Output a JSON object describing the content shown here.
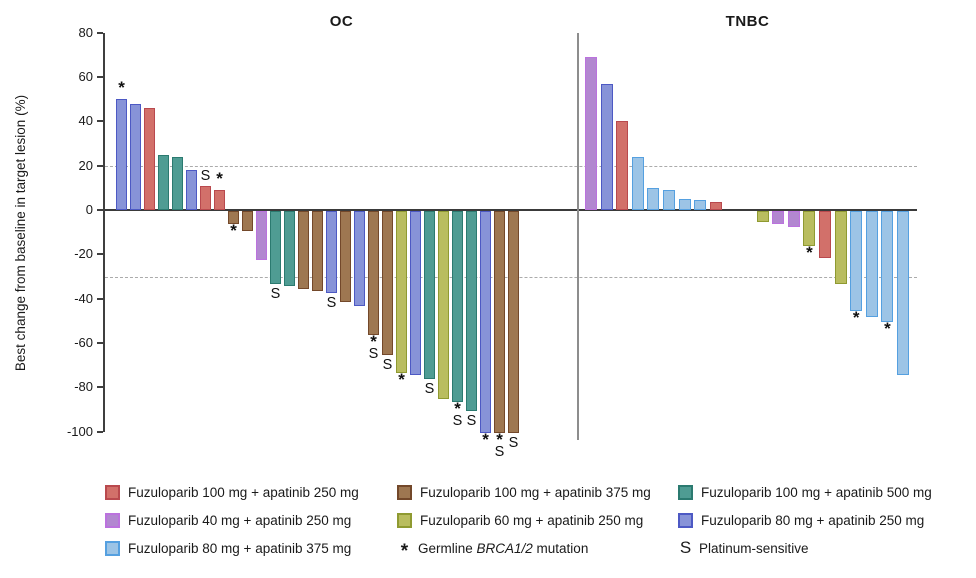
{
  "figure_colors": {
    "fuzuloparib-100-apatinib-250": {
      "fill": "#d2706a",
      "stroke": "#b9494e"
    },
    "fuzuloparib-40-apatinib-250": {
      "fill": "#b287d0",
      "stroke": "#bb72de"
    },
    "fuzuloparib-80-apatinib-375": {
      "fill": "#9cc4e6",
      "stroke": "#55a0e0"
    },
    "fuzuloparib-100-apatinib-375": {
      "fill": "#9e7751",
      "stroke": "#73482a"
    },
    "fuzuloparib-60-apatinib-250": {
      "fill": "#b9bd5f",
      "stroke": "#8f9a31"
    },
    "fuzuloparib-100-apatinib-500": {
      "fill": "#4f9c93",
      "stroke": "#2b7a70"
    },
    "fuzuloparib-80-apatinib-250": {
      "fill": "#8793d8",
      "stroke": "#4d59c4"
    }
  },
  "chart_data": {
    "type": "bar",
    "ylabel": "Best change from baseline in target lesion (%)",
    "ylim": [
      -100,
      80
    ],
    "yticks": [
      80,
      60,
      40,
      20,
      0,
      -20,
      -40,
      -60,
      -80,
      -100
    ],
    "ref_lines": [
      20,
      -30
    ],
    "grid": "dashed-reference-lines-only",
    "marks_meaning": {
      "*": "Germline BRCA1/2 mutation",
      "S": "Platinum-sensitive"
    },
    "panels": [
      {
        "title": "OC",
        "bars": [
          {
            "group": "fuzuloparib-80-apatinib-250",
            "value": 50,
            "mark": "*"
          },
          {
            "group": "fuzuloparib-80-apatinib-250",
            "value": 48,
            "mark": ""
          },
          {
            "group": "fuzuloparib-100-apatinib-250",
            "value": 46,
            "mark": ""
          },
          {
            "group": "fuzuloparib-100-apatinib-500",
            "value": 25,
            "mark": ""
          },
          {
            "group": "fuzuloparib-100-apatinib-500",
            "value": 24,
            "mark": ""
          },
          {
            "group": "fuzuloparib-80-apatinib-250",
            "value": 18,
            "mark": ""
          },
          {
            "group": "fuzuloparib-100-apatinib-250",
            "value": 11,
            "mark": "S"
          },
          {
            "group": "fuzuloparib-100-apatinib-250",
            "value": 9,
            "mark": "*"
          },
          {
            "group": "fuzuloparib-100-apatinib-375",
            "value": -6,
            "mark": "*"
          },
          {
            "group": "fuzuloparib-100-apatinib-375",
            "value": -9,
            "mark": ""
          },
          {
            "group": "fuzuloparib-40-apatinib-250",
            "value": -22,
            "mark": ""
          },
          {
            "group": "fuzuloparib-100-apatinib-500",
            "value": -33,
            "mark": "S"
          },
          {
            "group": "fuzuloparib-100-apatinib-500",
            "value": -34,
            "mark": ""
          },
          {
            "group": "fuzuloparib-100-apatinib-375",
            "value": -35,
            "mark": ""
          },
          {
            "group": "fuzuloparib-100-apatinib-375",
            "value": -36,
            "mark": ""
          },
          {
            "group": "fuzuloparib-80-apatinib-250",
            "value": -37,
            "mark": "S"
          },
          {
            "group": "fuzuloparib-100-apatinib-375",
            "value": -41,
            "mark": ""
          },
          {
            "group": "fuzuloparib-80-apatinib-250",
            "value": -43,
            "mark": ""
          },
          {
            "group": "fuzuloparib-100-apatinib-375",
            "value": -56,
            "mark": "*S"
          },
          {
            "group": "fuzuloparib-100-apatinib-375",
            "value": -65,
            "mark": "S"
          },
          {
            "group": "fuzuloparib-60-apatinib-250",
            "value": -73,
            "mark": "*"
          },
          {
            "group": "fuzuloparib-80-apatinib-250",
            "value": -74,
            "mark": ""
          },
          {
            "group": "fuzuloparib-100-apatinib-500",
            "value": -76,
            "mark": "S"
          },
          {
            "group": "fuzuloparib-60-apatinib-250",
            "value": -85,
            "mark": ""
          },
          {
            "group": "fuzuloparib-100-apatinib-500",
            "value": -86,
            "mark": "*S"
          },
          {
            "group": "fuzuloparib-100-apatinib-500",
            "value": -90,
            "mark": "S"
          },
          {
            "group": "fuzuloparib-80-apatinib-250",
            "value": -100,
            "mark": "*"
          },
          {
            "group": "fuzuloparib-100-apatinib-375",
            "value": -100,
            "mark": "*S"
          },
          {
            "group": "fuzuloparib-100-apatinib-375",
            "value": -100,
            "mark": "S"
          }
        ]
      },
      {
        "title": "TNBC",
        "bars": [
          {
            "group": "fuzuloparib-40-apatinib-250",
            "value": 69,
            "mark": ""
          },
          {
            "group": "fuzuloparib-80-apatinib-250",
            "value": 57,
            "mark": ""
          },
          {
            "group": "fuzuloparib-100-apatinib-250",
            "value": 40,
            "mark": ""
          },
          {
            "group": "fuzuloparib-80-apatinib-375",
            "value": 24,
            "mark": ""
          },
          {
            "group": "fuzuloparib-80-apatinib-375",
            "value": 10,
            "mark": ""
          },
          {
            "group": "fuzuloparib-80-apatinib-375",
            "value": 9,
            "mark": ""
          },
          {
            "group": "fuzuloparib-80-apatinib-375",
            "value": 5,
            "mark": ""
          },
          {
            "group": "fuzuloparib-80-apatinib-375",
            "value": 4.5,
            "mark": ""
          },
          {
            "group": "fuzuloparib-100-apatinib-250",
            "value": 3.5,
            "mark": ""
          },
          {
            "group": "",
            "value": 0,
            "mark": ""
          },
          {
            "group": "",
            "value": 0,
            "mark": ""
          },
          {
            "group": "fuzuloparib-60-apatinib-250",
            "value": -5,
            "mark": ""
          },
          {
            "group": "fuzuloparib-40-apatinib-250",
            "value": -6,
            "mark": ""
          },
          {
            "group": "fuzuloparib-40-apatinib-250",
            "value": -7,
            "mark": ""
          },
          {
            "group": "fuzuloparib-60-apatinib-250",
            "value": -16,
            "mark": "*"
          },
          {
            "group": "fuzuloparib-100-apatinib-250",
            "value": -21,
            "mark": ""
          },
          {
            "group": "fuzuloparib-60-apatinib-250",
            "value": -33,
            "mark": ""
          },
          {
            "group": "fuzuloparib-80-apatinib-375",
            "value": -45,
            "mark": "*"
          },
          {
            "group": "fuzuloparib-80-apatinib-375",
            "value": -48,
            "mark": ""
          },
          {
            "group": "fuzuloparib-80-apatinib-375",
            "value": -50,
            "mark": "*"
          },
          {
            "group": "fuzuloparib-80-apatinib-375",
            "value": -74,
            "mark": ""
          }
        ]
      }
    ]
  },
  "legend": {
    "columns": [
      [
        {
          "type": "swatch",
          "group": "fuzuloparib-100-apatinib-250",
          "label": "Fuzuloparib 100 mg + apatinib 250 mg"
        },
        {
          "type": "swatch",
          "group": "fuzuloparib-40-apatinib-250",
          "label": "Fuzuloparib 40 mg + apatinib 250 mg"
        },
        {
          "type": "swatch",
          "group": "fuzuloparib-80-apatinib-375",
          "label": "Fuzuloparib 80 mg + apatinib 375 mg"
        }
      ],
      [
        {
          "type": "swatch",
          "group": "fuzuloparib-100-apatinib-375",
          "label": "Fuzuloparib 100 mg + apatinib 375 mg"
        },
        {
          "type": "swatch",
          "group": "fuzuloparib-60-apatinib-250",
          "label": "Fuzuloparib 60 mg + apatinib 250 mg"
        },
        {
          "type": "symbol",
          "symbol": "*",
          "label_prefix": "Germline ",
          "label_italic": "BRCA1/2",
          "label_suffix": " mutation"
        }
      ],
      [
        {
          "type": "swatch",
          "group": "fuzuloparib-100-apatinib-500",
          "label": "Fuzuloparib 100 mg + apatinib 500 mg"
        },
        {
          "type": "swatch",
          "group": "fuzuloparib-80-apatinib-250",
          "label": "Fuzuloparib 80 mg + apatinib 250 mg"
        },
        {
          "type": "symbol",
          "symbol": "S",
          "label": "Platinum-sensitive"
        }
      ]
    ]
  }
}
